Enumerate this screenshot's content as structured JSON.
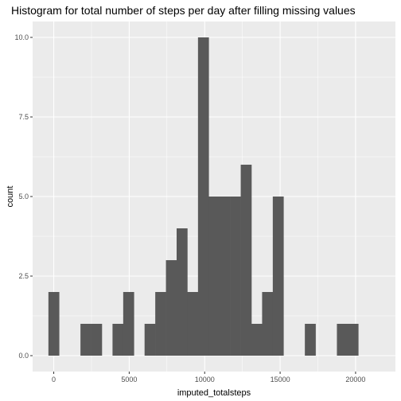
{
  "chart_data": {
    "type": "bar",
    "title": "Histogram for total number of steps per day after filling missing values",
    "xlabel": "imputed_totalsteps",
    "ylabel": "count",
    "xlim": [
      -1400,
      22640
    ],
    "ylim": [
      -0.5,
      10.5
    ],
    "bin_width": 708,
    "bins_start": -354,
    "counts": [
      2,
      0,
      0,
      1,
      1,
      0,
      1,
      2,
      0,
      1,
      2,
      3,
      4,
      2,
      10,
      5,
      5,
      5,
      6,
      1,
      2,
      5,
      0,
      0,
      1,
      0,
      0,
      1,
      1
    ],
    "x_ticks": [
      0,
      5000,
      10000,
      15000,
      20000
    ],
    "x_tick_labels": [
      "0",
      "5000",
      "10000",
      "15000",
      "20000"
    ],
    "y_ticks": [
      0,
      2.5,
      5,
      7.5,
      10
    ],
    "y_tick_labels": [
      "0.0",
      "2.5",
      "5.0",
      "7.5",
      "10.0"
    ],
    "grid": true,
    "colors": {
      "panel": "#ebebeb",
      "grid_major": "#ffffff",
      "bar": "#595959",
      "tick": "#333333"
    }
  }
}
